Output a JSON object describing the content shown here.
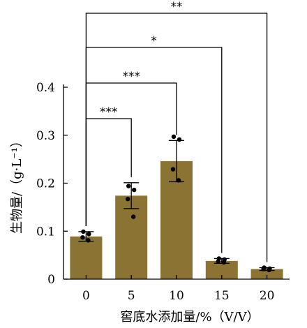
{
  "chart_data": {
    "type": "bar",
    "xlabel": "窖底水添加量/%（V/V）",
    "ylabel": "生物量/（g·L⁻¹）",
    "categories": [
      "0",
      "5",
      "10",
      "15",
      "20"
    ],
    "values": [
      0.089,
      0.174,
      0.246,
      0.038,
      0.021
    ],
    "errors": [
      0.01,
      0.027,
      0.043,
      0.005,
      0.003
    ],
    "points": [
      [
        0.099,
        0.094,
        0.087,
        0.081
      ],
      [
        0.194,
        0.186,
        0.167,
        0.13
      ],
      [
        0.297,
        0.291,
        0.229,
        0.206
      ],
      [
        0.043,
        0.041,
        0.037,
        0.035
      ],
      [
        0.024,
        0.022,
        0.021,
        0.019
      ]
    ],
    "ylim": [
      0,
      0.4
    ],
    "yticks": [
      "0",
      "0.1",
      "0.2",
      "0.3",
      "0.4"
    ],
    "bar_color": "#8b7333",
    "grid": false,
    "significance": [
      {
        "from": "0",
        "to": "5",
        "label": "***"
      },
      {
        "from": "0",
        "to": "10",
        "label": "***"
      },
      {
        "from": "0",
        "to": "15",
        "label": "*"
      },
      {
        "from": "0",
        "to": "20",
        "label": "**"
      }
    ]
  }
}
